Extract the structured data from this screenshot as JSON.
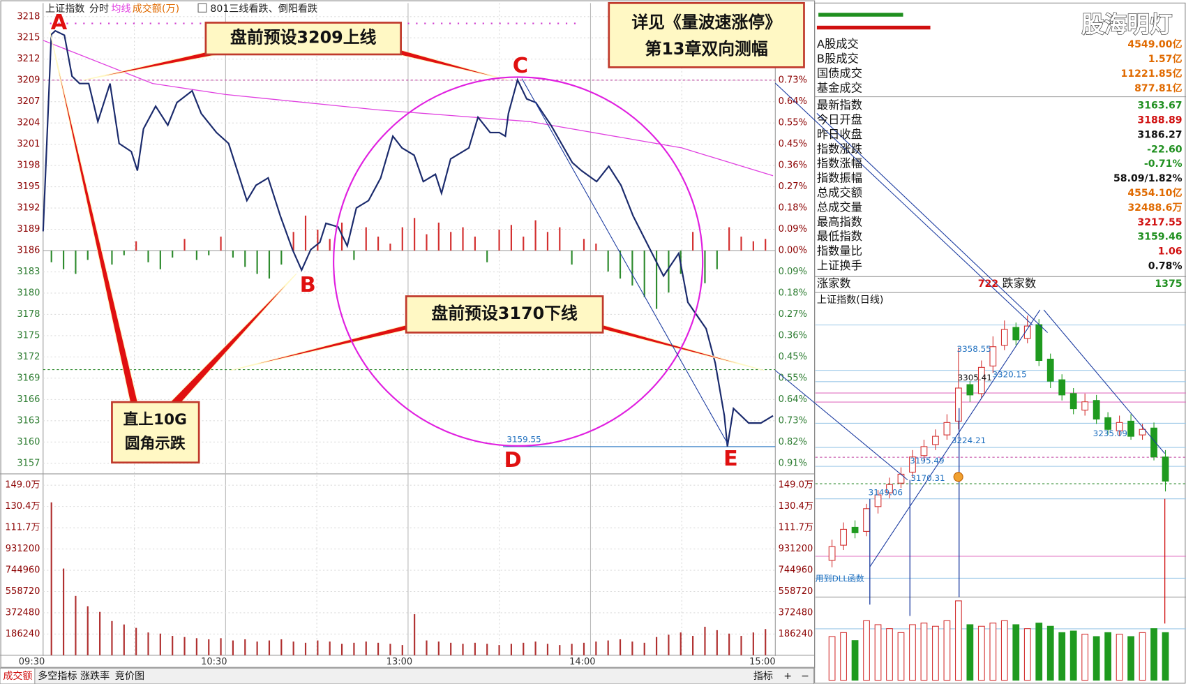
{
  "toolbar": {
    "index_name": "上证指数",
    "tabs": [
      "分时",
      "均线",
      "成交额(万)"
    ],
    "signal": "801三线看跌、倒阳看跌"
  },
  "intraday": {
    "price_ticks": [
      {
        "value": 3218.24,
        "label": "3218"
      },
      {
        "value": 3215.34,
        "label": "3215"
      },
      {
        "value": 3212.43,
        "label": "3212"
      },
      {
        "value": 3209.52,
        "label": "3209"
      },
      {
        "value": 3206.62,
        "label": "3207"
      },
      {
        "value": 3203.71,
        "label": "3204"
      },
      {
        "value": 3200.8,
        "label": "3201"
      },
      {
        "value": 3197.9,
        "label": "3198"
      },
      {
        "value": 3194.99,
        "label": "3195"
      },
      {
        "value": 3192.08,
        "label": "3192"
      },
      {
        "value": 3189.18,
        "label": "3189"
      },
      {
        "value": 3186.27,
        "label": "3186"
      },
      {
        "value": 3183.36,
        "label": "3183"
      },
      {
        "value": 3180.46,
        "label": "3180"
      },
      {
        "value": 3177.55,
        "label": "3178"
      },
      {
        "value": 3174.64,
        "label": "3175"
      },
      {
        "value": 3171.74,
        "label": "3172"
      },
      {
        "value": 3168.83,
        "label": "3169"
      },
      {
        "value": 3165.92,
        "label": "3166"
      },
      {
        "value": 3163.02,
        "label": "3163"
      },
      {
        "value": 3160.11,
        "label": "3160"
      },
      {
        "value": 3157.2,
        "label": "3157"
      }
    ],
    "ylim": [
      3157.2,
      3218.24
    ],
    "pct_labels": [
      "0.73%",
      "0.64%",
      "0.55%",
      "0.45%",
      "0.36%",
      "0.27%",
      "0.18%",
      "0.09%",
      "0.00%",
      "0.09%",
      "0.18%",
      "0.27%",
      "0.36%",
      "0.45%",
      "0.55%",
      "0.64%",
      "0.73%",
      "0.82%",
      "0.91%"
    ],
    "volume_ticks": [
      {
        "value": 1490000,
        "label": "149.0万"
      },
      {
        "value": 1304000,
        "label": "130.4万"
      },
      {
        "value": 1117000,
        "label": "111.7万"
      },
      931200,
      744960,
      558720,
      372480,
      186240
    ],
    "volume_ylim": [
      0,
      1490000
    ],
    "time_labels": [
      "09:30",
      "10:30",
      "13:00",
      "14:00",
      "15:00"
    ],
    "xlim": [
      0,
      240
    ],
    "price_color": "#1a2a6c",
    "avg_color": "#e040e0",
    "up_color": "#d32f2f",
    "down_color": "#2e8b2e",
    "volume_color": "#b03030",
    "minutes": [
      0,
      2.7,
      4,
      7,
      9.5,
      12,
      15,
      18,
      22,
      25,
      29,
      31,
      33,
      37,
      41,
      44,
      49,
      52,
      57,
      61,
      65,
      67,
      70,
      74,
      78,
      82,
      85,
      88,
      91,
      93,
      97,
      100,
      103,
      107,
      111,
      115,
      118,
      122,
      125,
      129,
      131,
      134,
      140,
      143,
      147,
      150,
      152,
      153,
      156,
      159,
      162,
      167,
      174,
      177,
      182,
      186,
      190,
      194,
      199,
      204,
      209,
      212,
      218,
      221,
      224,
      225,
      227,
      232,
      236,
      240
    ],
    "price": [
      3188.9,
      3215.8,
      3216.3,
      3215.7,
      3210.1,
      3209.1,
      3209.1,
      3203.9,
      3209.1,
      3200.9,
      3199.8,
      3197.2,
      3202.9,
      3206.0,
      3203.4,
      3206.5,
      3208.1,
      3205.0,
      3202.4,
      3200.9,
      3195.7,
      3193.1,
      3195.2,
      3196.2,
      3191.0,
      3186.4,
      3183.6,
      3186.4,
      3187.4,
      3190.0,
      3189.5,
      3186.9,
      3192.1,
      3193.1,
      3196.2,
      3201.9,
      3200.3,
      3199.3,
      3195.7,
      3196.7,
      3194.1,
      3198.8,
      3200.3,
      3204.5,
      3202.4,
      3202.4,
      3201.9,
      3205.0,
      3209.6,
      3207.0,
      3206.5,
      3203.4,
      3198.3,
      3197.2,
      3195.7,
      3197.8,
      3195.2,
      3191.0,
      3186.9,
      3182.8,
      3185.9,
      3179.2,
      3175.6,
      3170.9,
      3163.7,
      3159.5,
      3164.7,
      3162.7,
      3162.7,
      3163.7
    ],
    "avg_minutes": [
      0,
      11,
      36,
      60,
      110,
      160,
      210,
      240
    ],
    "avg_price": [
      3215.0,
      3213.2,
      3209.1,
      3207.6,
      3205.5,
      3203.9,
      3200.3,
      3196.5
    ],
    "breadth_pct": [
      -0.05,
      -0.08,
      -0.1,
      -0.04,
      0.03,
      -0.06,
      -0.02,
      0.04,
      -0.05,
      -0.08,
      -0.03,
      0.05,
      -0.04,
      -0.02,
      0.06,
      -0.03,
      -0.07,
      -0.1,
      -0.12,
      -0.06,
      0.08,
      0.15,
      0.09,
      0.05,
      0.12,
      -0.04,
      0.1,
      0.06,
      0.03,
      0.1,
      0.14,
      0.07,
      0.12,
      0.08,
      0.1,
      0.06,
      -0.05,
      0.09,
      0.11,
      0.06,
      0.13,
      0.08,
      0.1,
      -0.06,
      0.05,
      0.03,
      -0.09,
      -0.12,
      -0.15,
      -0.2,
      -0.25,
      -0.18,
      -0.1,
      0.08,
      -0.14,
      -0.08,
      0.1,
      0.06,
      0.04,
      0.05
    ],
    "volume": [
      1340000,
      760000,
      520000,
      430000,
      380000,
      300000,
      270000,
      240000,
      200000,
      190000,
      170000,
      160000,
      150000,
      140000,
      150000,
      130000,
      140000,
      120000,
      130000,
      140000,
      120000,
      110000,
      130000,
      120000,
      100000,
      110000,
      120000,
      110000,
      100000,
      90000,
      360000,
      130000,
      120000,
      110000,
      100000,
      110000,
      100000,
      90000,
      100000,
      110000,
      120000,
      100000,
      90000,
      100000,
      110000,
      120000,
      130000,
      140000,
      120000,
      110000,
      160000,
      180000,
      200000,
      170000,
      250000,
      220000,
      190000,
      170000,
      200000,
      230000
    ]
  },
  "annotations": {
    "top_box": "盘前预设3209上线",
    "book_box": [
      "详见《量波速涨停》",
      "第13章双向测幅"
    ],
    "bottom_box": "盘前预设3170下线",
    "left_box": [
      "直上10G",
      "圆角示跌"
    ],
    "points": [
      "A",
      "B",
      "C",
      "D",
      "E"
    ],
    "low_label": "3159.55"
  },
  "watermark": "股海明灯",
  "stats": {
    "rows": [
      {
        "label": "A股成交",
        "value": "4549.00亿",
        "color": "#e06a00"
      },
      {
        "label": "B股成交",
        "value": "1.57亿",
        "color": "#e06a00"
      },
      {
        "label": "国债成交",
        "value": "11221.85亿",
        "color": "#e06a00"
      },
      {
        "label": "基金成交",
        "value": "877.81亿",
        "color": "#e06a00"
      },
      {
        "label": "最新指数",
        "value": "3163.67",
        "color": "#1f8f1f"
      },
      {
        "label": "今日开盘",
        "value": "3188.89",
        "color": "#d01010"
      },
      {
        "label": "昨日收盘",
        "value": "3186.27",
        "color": "#111111"
      },
      {
        "label": "指数涨跌",
        "value": "-22.60",
        "color": "#1f8f1f"
      },
      {
        "label": "指数涨幅",
        "value": "-0.71%",
        "color": "#1f8f1f"
      },
      {
        "label": "指数振幅",
        "value": "58.09/1.82%",
        "color": "#111111"
      },
      {
        "label": "总成交额",
        "value": "4554.10亿",
        "color": "#e06a00"
      },
      {
        "label": "总成交量",
        "value": "32488.6万",
        "color": "#e06a00"
      },
      {
        "label": "最高指数",
        "value": "3217.55",
        "color": "#d01010"
      },
      {
        "label": "最低指数",
        "value": "3159.46",
        "color": "#1f8f1f"
      },
      {
        "label": "指数量比",
        "value": "1.06",
        "color": "#d01010"
      },
      {
        "label": "上证换手",
        "value": "0.78%",
        "color": "#111111"
      }
    ],
    "up_label": "涨家数",
    "up": "722",
    "down_label": "跌家数",
    "down": "1375"
  },
  "daily": {
    "title": "上证指数(日线)",
    "ylim": [
      3000,
      3420
    ],
    "volume_ylim": [
      0,
      100
    ],
    "up_color": "#d32f2f",
    "down_color": "#1f9a1f",
    "open": [
      3050,
      3072,
      3098,
      3092,
      3128,
      3148,
      3162,
      3178,
      3202,
      3218,
      3232,
      3252,
      3305,
      3292,
      3332,
      3362,
      3388,
      3372,
      3392,
      3342,
      3312,
      3292,
      3268,
      3282,
      3257,
      3238,
      3252,
      3232,
      3242,
      3200
    ],
    "close": [
      3070,
      3095,
      3090,
      3125,
      3145,
      3160,
      3175,
      3200,
      3215,
      3230,
      3250,
      3300,
      3290,
      3330,
      3360,
      3385,
      3370,
      3390,
      3340,
      3310,
      3290,
      3270,
      3280,
      3255,
      3240,
      3250,
      3230,
      3240,
      3200,
      3165
    ],
    "high": [
      3080,
      3105,
      3108,
      3132,
      3152,
      3170,
      3185,
      3210,
      3225,
      3240,
      3262,
      3358.55,
      3310,
      3340,
      3375,
      3398,
      3395,
      3405,
      3400,
      3350,
      3320,
      3300,
      3292,
      3290,
      3265,
      3260,
      3262,
      3248,
      3250,
      3210
    ],
    "low": [
      3040,
      3065,
      3082,
      3085,
      3118,
      3140,
      3155,
      3170,
      3195,
      3210,
      3225,
      3240,
      3280,
      3285,
      3322,
      3355,
      3362,
      3365,
      3332,
      3300,
      3282,
      3262,
      3260,
      3248,
      3232,
      3230,
      3225,
      3225,
      3195,
      3150
    ],
    "volume": [
      55,
      60,
      50,
      75,
      70,
      65,
      60,
      70,
      72,
      68,
      75,
      100,
      70,
      68,
      72,
      75,
      70,
      65,
      72,
      68,
      60,
      62,
      58,
      55,
      60,
      58,
      55,
      60,
      65,
      60
    ],
    "labels": [
      "3358.55",
      "3305.41",
      "3320.15",
      "3224.21",
      "3195.49",
      "3170.31",
      "3149.06",
      "3235.09"
    ],
    "note": "用到DLL函数"
  },
  "bottom_tabs": [
    "成交额",
    "多空指标",
    "涨跌率",
    "竞价图"
  ],
  "bottom_right": [
    "指标",
    "+",
    "−"
  ]
}
